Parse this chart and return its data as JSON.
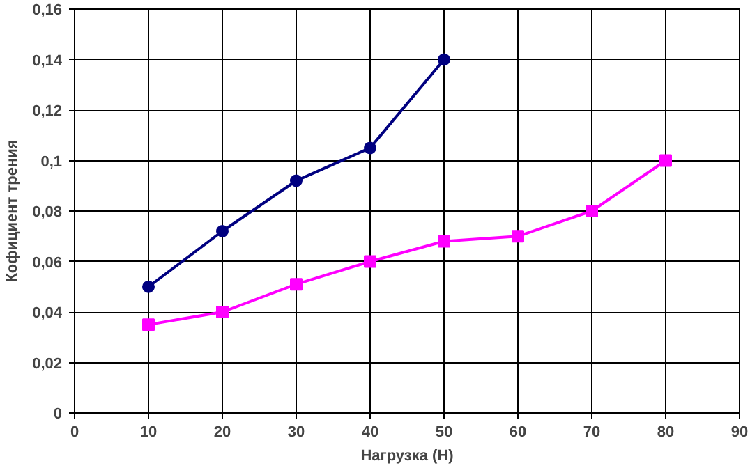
{
  "chart_data": {
    "type": "line",
    "xlabel": "Нагрузка (Н)",
    "ylabel": "Кофициент трения",
    "xlim": [
      0,
      90
    ],
    "xticks": [
      0,
      10,
      20,
      30,
      40,
      50,
      60,
      70,
      80,
      90
    ],
    "ylim": [
      0,
      0.16
    ],
    "yticks": [
      0,
      {
        "value": 0.02,
        "label": "0,02"
      },
      {
        "value": 0.04,
        "label": "0,04"
      },
      {
        "value": 0.06,
        "label": "0,06"
      },
      {
        "value": 0.08,
        "label": "0,08"
      },
      {
        "value": 0.1,
        "label": "0,1"
      },
      {
        "value": 0.12,
        "label": "0,12"
      },
      {
        "value": 0.14,
        "label": "0,14"
      },
      {
        "value": 0.16,
        "label": "0,16"
      }
    ],
    "grid": true,
    "series": [
      {
        "color": "#000080",
        "marker": "circle",
        "x": [
          10,
          20,
          30,
          40,
          50
        ],
        "values": [
          0.05,
          0.072,
          0.092,
          0.105,
          0.14
        ]
      },
      {
        "color": "#ff00ff",
        "marker": "square",
        "x": [
          10,
          20,
          30,
          40,
          50,
          60,
          70,
          80
        ],
        "values": [
          0.035,
          0.04,
          0.051,
          0.06,
          0.068,
          0.07,
          0.08,
          0.1
        ]
      }
    ]
  }
}
